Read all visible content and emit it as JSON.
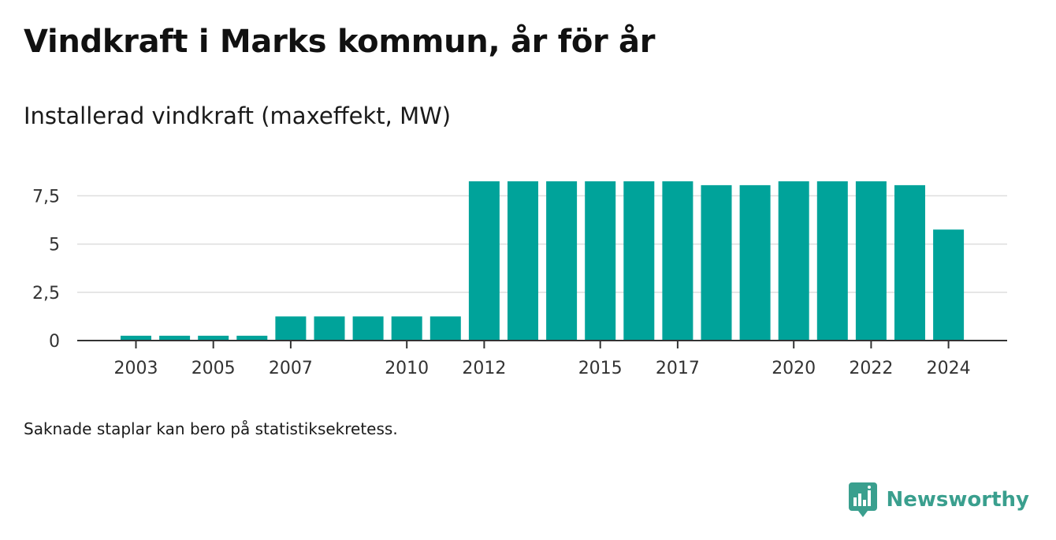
{
  "title": "Vindkraft i Marks kommun, år för år",
  "subtitle": "Installerad vindkraft (maxeffekt, MW)",
  "footnote": "Saknade staplar kan bero på statistiksekretess.",
  "brand": {
    "name": "Newsworthy",
    "icon": "newsworthy-logo-icon",
    "color": "#3a9f8e"
  },
  "chart_data": {
    "type": "bar",
    "categories": [
      "2003",
      "2004",
      "2005",
      "2006",
      "2007",
      "2008",
      "2009",
      "2010",
      "2011",
      "2012",
      "2013",
      "2014",
      "2015",
      "2016",
      "2017",
      "2018",
      "2019",
      "2020",
      "2021",
      "2022",
      "2023",
      "2024"
    ],
    "values": [
      0.25,
      0.25,
      0.25,
      0.25,
      1.25,
      1.25,
      1.25,
      1.25,
      1.25,
      8.25,
      8.25,
      8.25,
      8.25,
      8.25,
      8.25,
      8.05,
      8.05,
      8.25,
      8.25,
      8.25,
      8.05,
      5.75
    ],
    "x_tick_labels": [
      "2003",
      "2005",
      "2007",
      "2010",
      "2012",
      "2015",
      "2017",
      "2020",
      "2022",
      "2024"
    ],
    "y_ticks": [
      0,
      2.5,
      5,
      7.5
    ],
    "y_tick_labels": [
      "0",
      "2,5",
      "5",
      "7,5"
    ],
    "ylim": [
      0,
      8.25
    ],
    "xlabel": "",
    "ylabel": "",
    "grid": true,
    "bar_color": "#00a39a",
    "grid_color": "#dddddd",
    "axis_color": "#333333"
  }
}
